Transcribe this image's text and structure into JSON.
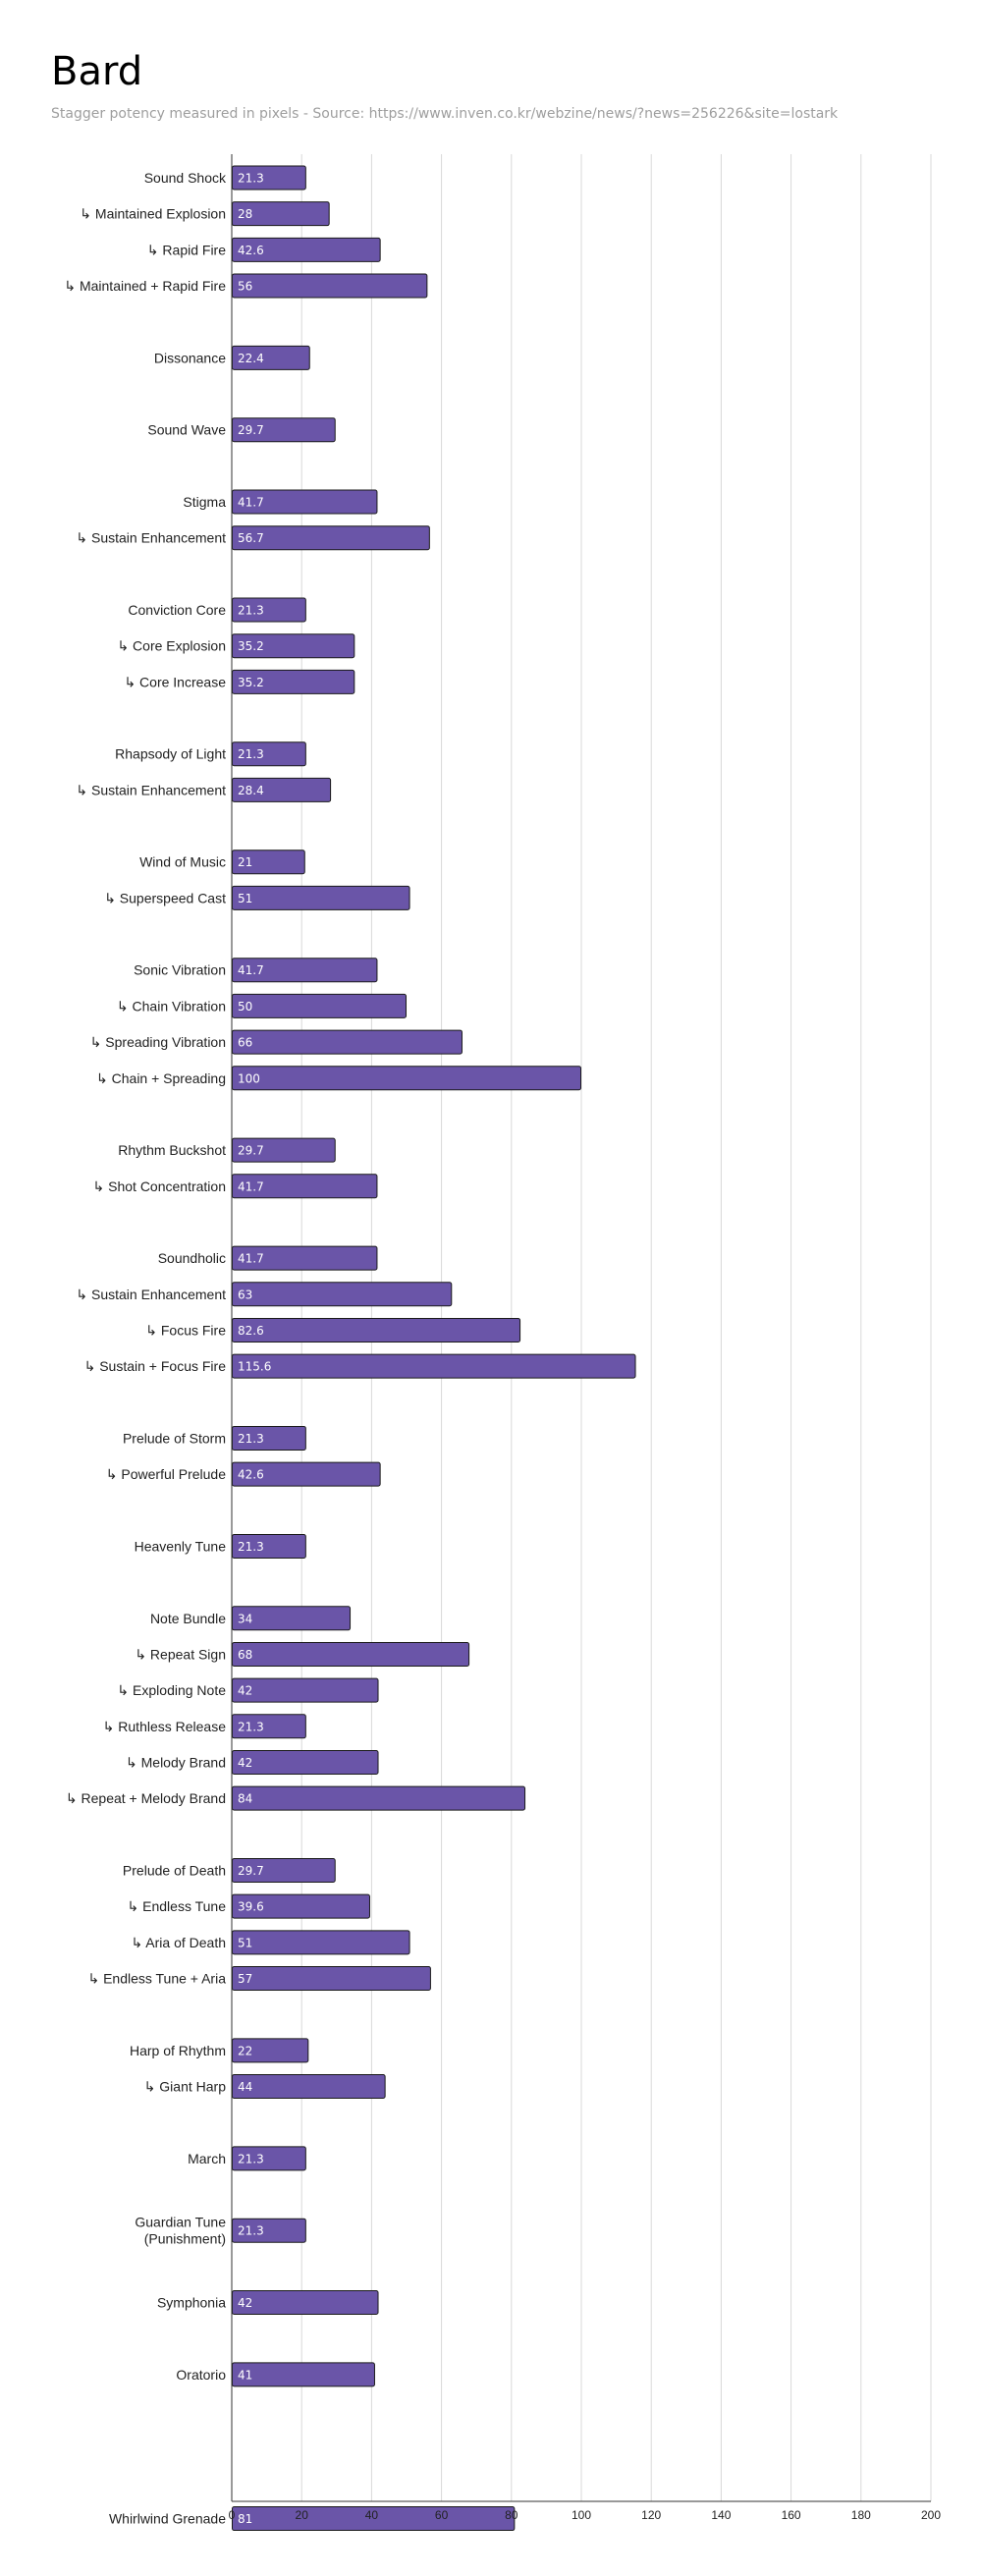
{
  "title": "Bard",
  "subtitle": "Stagger potency measured in pixels - Source: https://www.inven.co.kr/webzine/news/?news=256226&site=lostark",
  "colors": {
    "bar": "#6a55a8",
    "bar_stroke": "#1a1a1a",
    "grid": "#d9d9d9",
    "axis": "#333333"
  },
  "chart_data": {
    "type": "bar",
    "orientation": "horizontal",
    "title": "Bard",
    "subtitle": "Stagger potency measured in pixels - Source: https://www.inven.co.kr/webzine/news/?news=256226&site=lostark",
    "xlabel": "",
    "ylabel": "",
    "xlim": [
      0,
      200
    ],
    "ticks": [
      0,
      20,
      40,
      60,
      80,
      100,
      120,
      140,
      160,
      180,
      200
    ],
    "grid": true,
    "rows": [
      {
        "label": "Sound Shock",
        "value": 21.3
      },
      {
        "label": "↳ Maintained Explosion",
        "value": 28
      },
      {
        "label": "↳ Rapid Fire",
        "value": 42.6
      },
      {
        "label": "↳ Maintained + Rapid Fire",
        "value": 56
      },
      {
        "label": "",
        "value": null
      },
      {
        "label": "Dissonance",
        "value": 22.4
      },
      {
        "label": "",
        "value": null
      },
      {
        "label": "Sound Wave",
        "value": 29.7
      },
      {
        "label": "",
        "value": null
      },
      {
        "label": "Stigma",
        "value": 41.7
      },
      {
        "label": "↳ Sustain Enhancement",
        "value": 56.7
      },
      {
        "label": "",
        "value": null
      },
      {
        "label": "Conviction Core",
        "value": 21.3
      },
      {
        "label": "↳ Core Explosion",
        "value": 35.2
      },
      {
        "label": "↳ Core Increase",
        "value": 35.2
      },
      {
        "label": "",
        "value": null
      },
      {
        "label": "Rhapsody of Light",
        "value": 21.3
      },
      {
        "label": "↳ Sustain Enhancement",
        "value": 28.4
      },
      {
        "label": "",
        "value": null
      },
      {
        "label": "Wind of Music",
        "value": 21
      },
      {
        "label": "↳ Superspeed Cast",
        "value": 51
      },
      {
        "label": "",
        "value": null
      },
      {
        "label": "Sonic Vibration",
        "value": 41.7
      },
      {
        "label": "↳ Chain Vibration",
        "value": 50
      },
      {
        "label": "↳ Spreading Vibration",
        "value": 66
      },
      {
        "label": "↳ Chain + Spreading",
        "value": 100
      },
      {
        "label": "",
        "value": null
      },
      {
        "label": "Rhythm Buckshot",
        "value": 29.7
      },
      {
        "label": "↳ Shot Concentration",
        "value": 41.7
      },
      {
        "label": "",
        "value": null
      },
      {
        "label": "Soundholic",
        "value": 41.7
      },
      {
        "label": "↳ Sustain Enhancement",
        "value": 63
      },
      {
        "label": "↳ Focus Fire",
        "value": 82.6
      },
      {
        "label": "↳ Sustain + Focus Fire",
        "value": 115.6
      },
      {
        "label": "",
        "value": null
      },
      {
        "label": "Prelude of Storm",
        "value": 21.3
      },
      {
        "label": "↳ Powerful Prelude",
        "value": 42.6
      },
      {
        "label": "",
        "value": null
      },
      {
        "label": "Heavenly Tune",
        "value": 21.3
      },
      {
        "label": "",
        "value": null
      },
      {
        "label": "Note Bundle",
        "value": 34
      },
      {
        "label": "↳ Repeat Sign",
        "value": 68
      },
      {
        "label": "↳ Exploding Note",
        "value": 42
      },
      {
        "label": "↳ Ruthless Release",
        "value": 21.3
      },
      {
        "label": "↳ Melody Brand",
        "value": 42
      },
      {
        "label": "↳ Repeat + Melody Brand",
        "value": 84
      },
      {
        "label": "",
        "value": null
      },
      {
        "label": "Prelude of Death",
        "value": 29.7
      },
      {
        "label": "↳ Endless Tune",
        "value": 39.6
      },
      {
        "label": "↳ Aria of Death",
        "value": 51
      },
      {
        "label": "↳ Endless Tune +  Aria",
        "value": 57
      },
      {
        "label": "",
        "value": null
      },
      {
        "label": "Harp of Rhythm",
        "value": 22
      },
      {
        "label": "↳ Giant Harp",
        "value": 44
      },
      {
        "label": "",
        "value": null
      },
      {
        "label": "March",
        "value": 21.3
      },
      {
        "label": "",
        "value": null
      },
      {
        "label": "Guardian Tune (Punishment)",
        "value": 21.3,
        "lines": [
          "Guardian Tune",
          "(Punishment)"
        ]
      },
      {
        "label": "",
        "value": null
      },
      {
        "label": "Symphonia",
        "value": 42
      },
      {
        "label": "",
        "value": null
      },
      {
        "label": "Oratorio",
        "value": 41
      },
      {
        "label": "",
        "value": null
      },
      {
        "label": "",
        "value": null
      },
      {
        "label": "",
        "value": null
      },
      {
        "label": "Whirlwind Grenade",
        "value": 81
      }
    ]
  }
}
